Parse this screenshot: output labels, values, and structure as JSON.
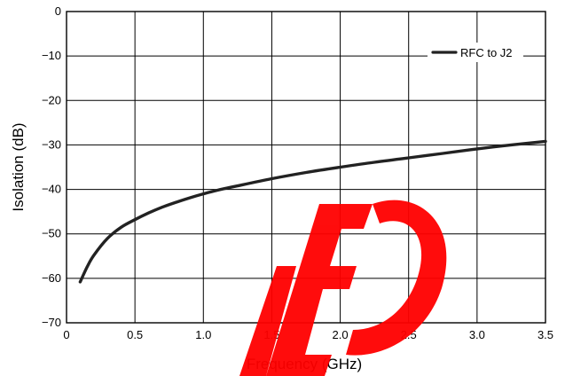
{
  "chart_data": {
    "type": "line",
    "xlabel": "Frequency (GHz)",
    "ylabel": "Isolation (dB)",
    "xlim": [
      0,
      3.5
    ],
    "ylim": [
      -70,
      0
    ],
    "xticks": [
      "0",
      "0.5",
      "1.0",
      "1.5",
      "2.0",
      "2.5",
      "3.0",
      "3.5"
    ],
    "yticks": [
      "0",
      "−10",
      "−20",
      "−30",
      "−40",
      "−50",
      "−60",
      "−70"
    ],
    "grid": true,
    "legend_position": "top-right",
    "series": [
      {
        "name": "RFC to J2",
        "color": "#222222",
        "x": [
          0.1,
          0.15,
          0.2,
          0.3,
          0.4,
          0.5,
          0.6,
          0.7,
          0.8,
          0.9,
          1.0,
          1.1,
          1.25,
          1.5,
          1.75,
          2.0,
          2.25,
          2.5,
          2.75,
          3.0,
          3.25,
          3.5
        ],
        "y": [
          -60.8,
          -57.5,
          -54.8,
          -51.0,
          -48.5,
          -46.8,
          -45.3,
          -44.0,
          -42.9,
          -41.9,
          -41.0,
          -40.2,
          -39.2,
          -37.6,
          -36.2,
          -35.0,
          -33.9,
          -32.9,
          -31.9,
          -30.9,
          -30.0,
          -29.2
        ]
      }
    ]
  },
  "watermark": "LED"
}
